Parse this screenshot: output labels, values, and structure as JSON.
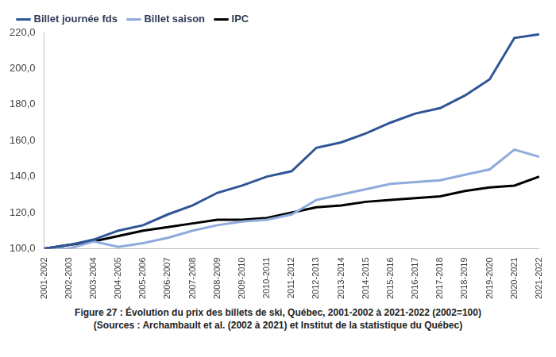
{
  "chart_data": {
    "type": "line",
    "title": "Figure 27 : Évolution du prix des billets de ski, Québec, 2001-2002 à 2021-2022 (2002=100)",
    "subtitle": "(Sources : Archambault et al. (2002 à 2021) et Institut de la statistique du Québec)",
    "categories": [
      "2001-2002",
      "2002-2003",
      "2003-2004",
      "2004-2005",
      "2005-2006",
      "2006-2007",
      "2007-2008",
      "2008-2009",
      "2009-2010",
      "2010-2011",
      "2011-2012",
      "2012-2013",
      "2013-2014",
      "2014-2015",
      "2015-2016",
      "2016-2017",
      "2017-2018",
      "2018-2019",
      "2019-2020",
      "2020-2021",
      "2021-2022"
    ],
    "series": [
      {
        "name": "Billet journée fds",
        "color": "#2f5597",
        "values": [
          100,
          102,
          105,
          110,
          113,
          119,
          124,
          131,
          135,
          140,
          143,
          156,
          159,
          164,
          170,
          175,
          178,
          185,
          194,
          217,
          219
        ]
      },
      {
        "name": "Billet saison",
        "color": "#8faadc",
        "values": [
          100,
          100,
          104,
          101,
          103,
          106,
          110,
          113,
          115,
          116,
          119,
          127,
          130,
          133,
          136,
          137,
          138,
          141,
          144,
          155,
          151
        ]
      },
      {
        "name": "IPC",
        "color": "#000000",
        "values": [
          100,
          102,
          104,
          107,
          110,
          112,
          114,
          116,
          116,
          117,
          120,
          123,
          124,
          126,
          127,
          128,
          129,
          132,
          134,
          135,
          140
        ]
      }
    ],
    "ylim": [
      100,
      220
    ],
    "yticks": [
      {
        "value": 100,
        "label": "100,0"
      },
      {
        "value": 120,
        "label": "120,0"
      },
      {
        "value": 140,
        "label": "140,0"
      },
      {
        "value": 160,
        "label": "160,0"
      },
      {
        "value": 180,
        "label": "180,0"
      },
      {
        "value": 200,
        "label": "200,0"
      },
      {
        "value": 220,
        "label": "220,0"
      }
    ],
    "grid": false,
    "legend": "upper left",
    "marker": "none",
    "line_style": "solid"
  }
}
